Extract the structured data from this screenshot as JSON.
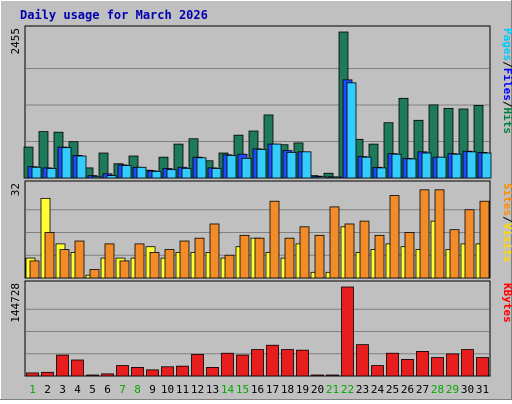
{
  "chart_data": {
    "type": "bar",
    "title": "Daily usage for March 2026",
    "days": [
      "1",
      "2",
      "3",
      "4",
      "5",
      "6",
      "7",
      "8",
      "9",
      "10",
      "11",
      "12",
      "13",
      "14",
      "15",
      "16",
      "17",
      "18",
      "19",
      "20",
      "21",
      "22",
      "23",
      "24",
      "25",
      "26",
      "27",
      "28",
      "29",
      "30",
      "31"
    ],
    "weekend_days": [
      "1",
      "7",
      "8",
      "14",
      "15",
      "21",
      "22",
      "28",
      "29"
    ],
    "panels": [
      {
        "id": "hits-files-pages",
        "max_label": "2455",
        "ymax": 2455,
        "legend": [
          {
            "text": "Pages",
            "color": "#00c8ff"
          },
          {
            "text": "/",
            "color": "#000000"
          },
          {
            "text": "Files",
            "color": "#0000ff"
          },
          {
            "text": "/",
            "color": "#000000"
          },
          {
            "text": "Hits",
            "color": "#008040"
          }
        ],
        "series": [
          {
            "name": "Hits",
            "color": "#1e7a5a",
            "values": [
              520,
              780,
              770,
              610,
              170,
              420,
              240,
              370,
              130,
              350,
              570,
              660,
              290,
              420,
              720,
              790,
              1060,
              560,
              590,
              40,
              80,
              2455,
              650,
              570,
              930,
              1340,
              970,
              1230,
              1170,
              1160,
              1220
            ]
          },
          {
            "name": "Files",
            "color": "#1e4cff",
            "values": [
              190,
              170,
              520,
              380,
              40,
              70,
              220,
              180,
              120,
              160,
              180,
              350,
              170,
              390,
              400,
              490,
              570,
              460,
              440,
              30,
              20,
              1650,
              360,
              180,
              410,
              330,
              440,
              350,
              410,
              450,
              430
            ]
          },
          {
            "name": "Pages",
            "color": "#33ccff",
            "values": [
              180,
              160,
              510,
              370,
              20,
              40,
              210,
              180,
              110,
              140,
              160,
              340,
              160,
              380,
              330,
              480,
              570,
              430,
              440,
              20,
              10,
              1600,
              350,
              170,
              400,
              320,
              420,
              350,
              400,
              440,
              420
            ]
          }
        ]
      },
      {
        "id": "visits-sites",
        "max_label": "32",
        "ymax": 32,
        "legend": [
          {
            "text": "Sites",
            "color": "#ff8c00"
          },
          {
            "text": "/",
            "color": "#000000"
          },
          {
            "text": "Visits",
            "color": "#ffd700"
          }
        ],
        "series": [
          {
            "name": "Visits",
            "color": "#ffff33",
            "values": [
              7,
              28,
              12,
              9,
              1,
              7,
              7,
              7,
              11,
              7,
              9,
              9,
              9,
              7,
              11,
              14,
              9,
              7,
              12,
              2,
              2,
              18,
              9,
              10,
              12,
              11,
              10,
              20,
              10,
              12,
              12
            ]
          },
          {
            "name": "Sites",
            "color": "#f28c28",
            "values": [
              6,
              16,
              10,
              13,
              3,
              12,
              6,
              12,
              9,
              10,
              13,
              14,
              19,
              8,
              15,
              14,
              27,
              14,
              18,
              15,
              25,
              19,
              20,
              15,
              29,
              16,
              31,
              31,
              17,
              24,
              27
            ]
          }
        ]
      },
      {
        "id": "kbytes",
        "max_label": "144728",
        "ymax": 144728,
        "legend": [
          {
            "text": "KBytes",
            "color": "#ff0000"
          }
        ],
        "series": [
          {
            "name": "KBytes",
            "color": "#e81e1e",
            "values": [
              5000,
              6000,
              34000,
              26000,
              1500,
              3500,
              17000,
              14000,
              10000,
              15000,
              16000,
              35000,
              14000,
              37000,
              34000,
              43000,
              50000,
              43000,
              42000,
              1500,
              1500,
              144728,
              51000,
              17000,
              37000,
              27000,
              40000,
              30000,
              36000,
              43000,
              30000
            ]
          }
        ]
      }
    ]
  }
}
